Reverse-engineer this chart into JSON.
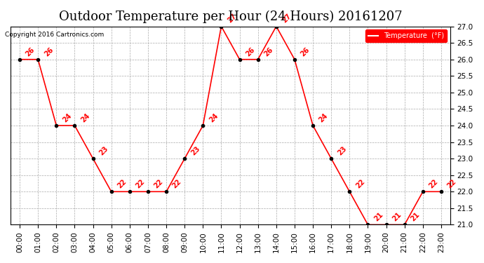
{
  "title": "Outdoor Temperature per Hour (24 Hours) 20161207",
  "copyright": "Copyright 2016 Cartronics.com",
  "legend_label": "Temperature  (°F)",
  "hours": [
    "00:00",
    "01:00",
    "02:00",
    "03:00",
    "04:00",
    "05:00",
    "06:00",
    "07:00",
    "08:00",
    "09:00",
    "10:00",
    "11:00",
    "12:00",
    "13:00",
    "14:00",
    "15:00",
    "16:00",
    "17:00",
    "18:00",
    "19:00",
    "20:00",
    "21:00",
    "22:00",
    "23:00"
  ],
  "temperatures": [
    26,
    26,
    24,
    24,
    23,
    22,
    22,
    22,
    22,
    23,
    24,
    27,
    26,
    26,
    27,
    26,
    24,
    23,
    22,
    21,
    21,
    21,
    22,
    22
  ],
  "ylim": [
    21.0,
    27.0
  ],
  "yticks": [
    21.0,
    21.5,
    22.0,
    22.5,
    23.0,
    23.5,
    24.0,
    24.5,
    25.0,
    25.5,
    26.0,
    26.5,
    27.0
  ],
  "line_color": "red",
  "marker_color": "black",
  "bg_color": "#ffffff",
  "plot_bg_color": "#ffffff",
  "grid_color": "#aaaaaa",
  "title_fontsize": 13,
  "label_fontsize": 7.5,
  "annotation_fontsize": 7,
  "legend_bg": "#ff0000",
  "legend_text_color": "#ffffff"
}
